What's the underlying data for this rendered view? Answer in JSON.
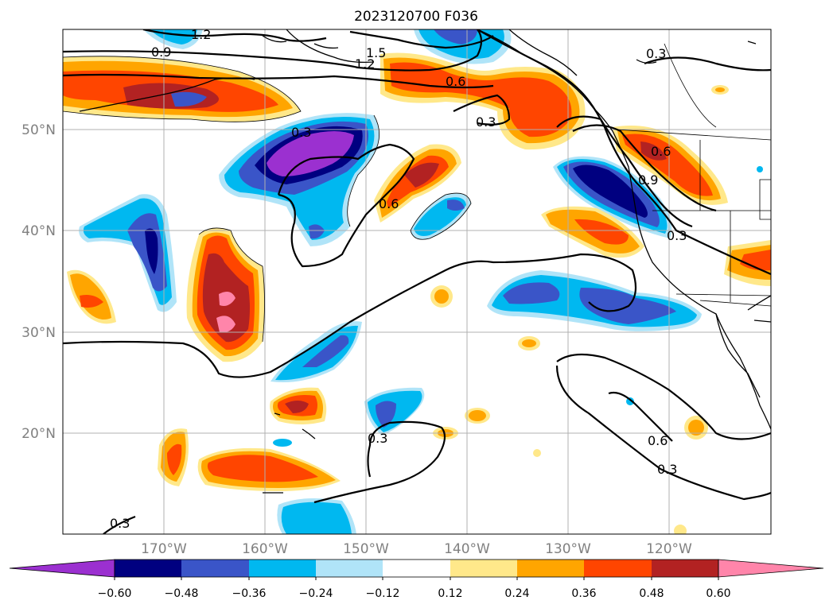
{
  "title": "2023120700 F036",
  "lon_ticks": [
    "170°W",
    "160°W",
    "150°W",
    "140°W",
    "130°W",
    "120°W"
  ],
  "lat_ticks": [
    "50°N",
    "40°N",
    "30°N",
    "20°N"
  ],
  "colorbar": {
    "ticks": [
      "−0.60",
      "−0.48",
      "−0.36",
      "−0.24",
      "−0.12",
      "0.12",
      "0.24",
      "0.36",
      "0.48",
      "0.60"
    ],
    "colors": [
      "#9b30d0",
      "#000080",
      "#3a55c8",
      "#00b8f0",
      "#b0e4f8",
      "#ffffff",
      "#ffe88a",
      "#ffa500",
      "#ff4500",
      "#b22222",
      "#ff85aa"
    ]
  },
  "contour_labels": [
    "1.2",
    "0.9",
    "1.5",
    "1.2",
    "0.6",
    "0.3",
    "0.3",
    "0.6",
    "0.6",
    "0.9",
    "0.3",
    "0.3",
    "0.3",
    "0.6",
    "0.3",
    "0.3"
  ]
}
